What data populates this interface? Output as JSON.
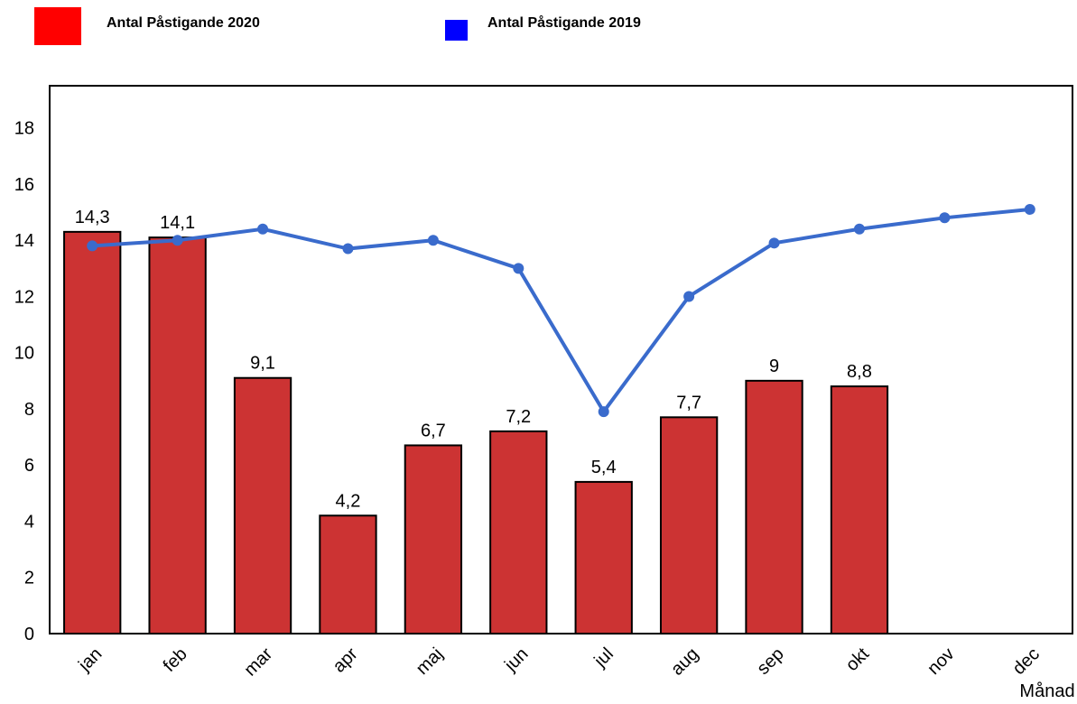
{
  "chart_data": {
    "type": "bar",
    "categories": [
      "jan",
      "feb",
      "mar",
      "apr",
      "maj",
      "jun",
      "jul",
      "aug",
      "sep",
      "okt",
      "nov",
      "dec"
    ],
    "x_label": "Månad",
    "series": [
      {
        "name": "Antal Påstigande 2020",
        "type": "bar",
        "color": "#cc3333",
        "legend_color": "#ff0000",
        "values": [
          14.3,
          14.1,
          9.1,
          4.2,
          6.7,
          7.2,
          5.4,
          7.7,
          9,
          8.8,
          null,
          null
        ],
        "value_labels": [
          "14,3",
          "14,1",
          "9,1",
          "4,2",
          "6,7",
          "7,2",
          "5,4",
          "7,7",
          "9",
          "8,8",
          null,
          null
        ]
      },
      {
        "name": "Antal Påstigande 2019",
        "type": "line",
        "color": "#3a6bcc",
        "legend_color": "#0000ff",
        "values": [
          13.8,
          14.0,
          14.4,
          13.7,
          14.0,
          13.0,
          7.9,
          12.0,
          13.9,
          14.4,
          14.8,
          15.1
        ]
      }
    ],
    "ylim": [
      0,
      19.5
    ],
    "yticks": [
      0,
      2,
      4,
      6,
      8,
      10,
      12,
      14,
      16,
      18
    ],
    "grid": false
  }
}
